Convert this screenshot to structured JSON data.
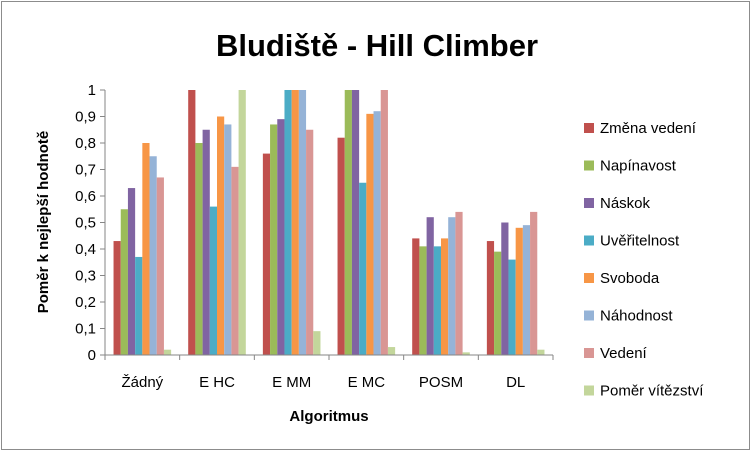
{
  "chart_data": {
    "type": "bar",
    "title": "Bludiště - Hill Climber",
    "xlabel": "Algoritmus",
    "ylabel": "Poměr k nejlepší hodnotě",
    "ylim": [
      0,
      1
    ],
    "yticks": [
      "0",
      "0,1",
      "0,2",
      "0,3",
      "0,4",
      "0,5",
      "0,6",
      "0,7",
      "0,8",
      "0,9",
      "1"
    ],
    "categories": [
      "Žádný",
      "E HC",
      "E MM",
      "E MC",
      "POSM",
      "DL"
    ],
    "grid": false,
    "legend_position": "right",
    "series": [
      {
        "name": "Změna vedení",
        "color": "#c0504d",
        "values": [
          0.43,
          1.0,
          0.76,
          0.82,
          0.44,
          0.43
        ]
      },
      {
        "name": "Napínavost",
        "color": "#9bbb59",
        "values": [
          0.55,
          0.8,
          0.87,
          1.0,
          0.41,
          0.39
        ]
      },
      {
        "name": "Náskok",
        "color": "#8064a2",
        "values": [
          0.63,
          0.85,
          0.89,
          1.0,
          0.52,
          0.5
        ]
      },
      {
        "name": "Uvěřitelnost",
        "color": "#4bacc6",
        "values": [
          0.37,
          0.56,
          1.0,
          0.65,
          0.41,
          0.36
        ]
      },
      {
        "name": "Svoboda",
        "color": "#f79646",
        "values": [
          0.8,
          0.9,
          1.0,
          0.91,
          0.44,
          0.48
        ]
      },
      {
        "name": "Náhodnost",
        "color": "#95b3d7",
        "values": [
          0.75,
          0.87,
          1.0,
          0.92,
          0.52,
          0.49
        ]
      },
      {
        "name": "Vedení",
        "color": "#d99694",
        "values": [
          0.67,
          0.71,
          0.85,
          1.0,
          0.54,
          0.54
        ]
      },
      {
        "name": "Poměr vítězství",
        "color": "#c3d69b",
        "values": [
          0.02,
          1.0,
          0.09,
          0.03,
          0.01,
          0.02
        ]
      }
    ]
  }
}
